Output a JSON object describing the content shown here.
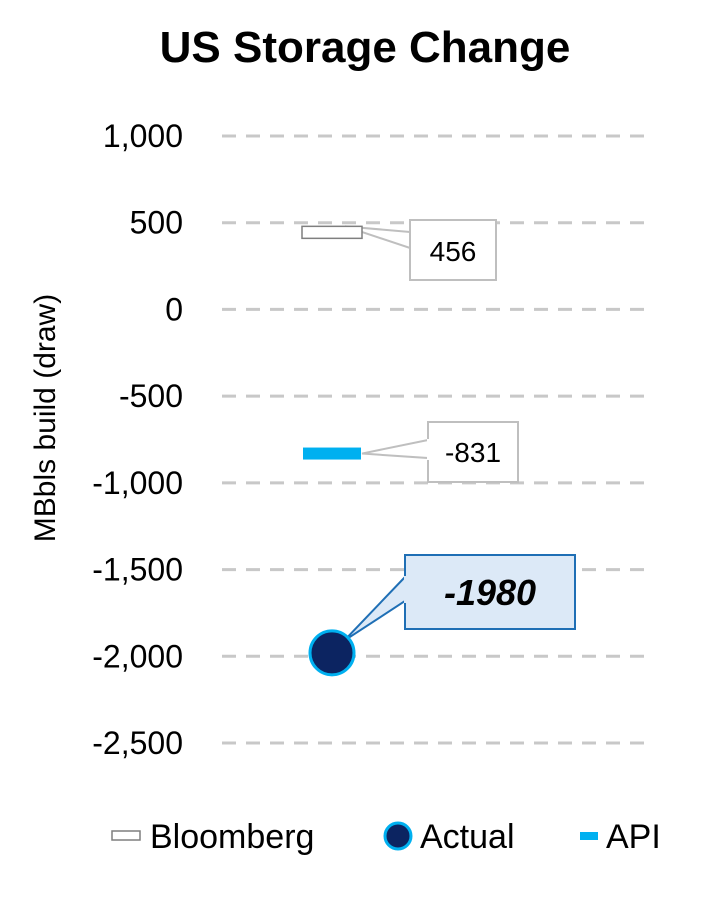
{
  "chart_data": {
    "type": "scatter",
    "title": "US Storage Change",
    "xlabel": "",
    "ylabel": "MBbls build (draw)",
    "ylim": [
      -2500,
      1000
    ],
    "yticks": [
      1000,
      500,
      0,
      -500,
      -1000,
      -1500,
      -2000,
      -2500
    ],
    "ytick_labels": [
      "1,000",
      "500",
      "0",
      "-500",
      "-1,000",
      "-1,500",
      "-2,000",
      "-2,500"
    ],
    "grid": true,
    "legend_position": "bottom",
    "series": [
      {
        "name": "Bloomberg",
        "value": 456,
        "label": "456",
        "marker": "dash-outline",
        "color": "#7f7f7f"
      },
      {
        "name": "Actual",
        "value": -1980,
        "label": "-1980",
        "marker": "circle",
        "color": "#0c2461",
        "edge": "#00b0f0"
      },
      {
        "name": "API",
        "value": -831,
        "label": "-831",
        "marker": "dash",
        "color": "#00b0f0"
      }
    ]
  }
}
